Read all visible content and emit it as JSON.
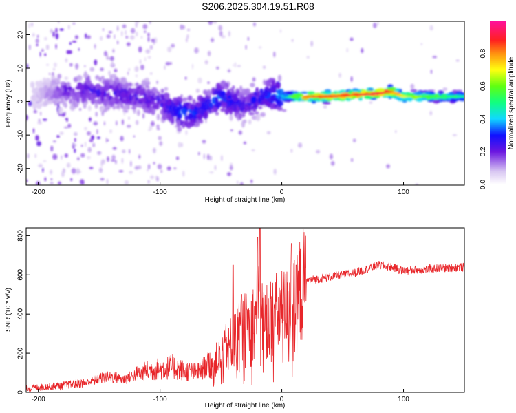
{
  "title": "S206.2025.304.19.51.R08",
  "chart_data": [
    {
      "type": "heatmap",
      "xlabel": "Height of straight line (km)",
      "ylabel": "Frequency (Hz)",
      "xlim": [
        -210,
        150
      ],
      "ylim": [
        -25,
        24
      ],
      "xticks": [
        -200,
        -100,
        0,
        100
      ],
      "yticks": [
        20,
        10,
        0,
        -10,
        -20
      ],
      "colorbar": {
        "label": "Normalized spectral amplitude",
        "range": [
          0,
          1
        ],
        "ticks": [
          "0.0",
          "0.2",
          "0.4",
          "0.6",
          "0.8"
        ],
        "tick_values": [
          0,
          0.2,
          0.4,
          0.6,
          0.8
        ]
      },
      "ridge": {
        "x": [
          -200,
          -180,
          -160,
          -140,
          -120,
          -100,
          -90,
          -80,
          -70,
          -60,
          -50,
          -40,
          -30,
          -20,
          -10,
          0,
          20,
          40,
          60,
          80,
          90,
          100,
          120,
          150
        ],
        "freq": [
          2.0,
          3.0,
          3.5,
          2.5,
          2.0,
          0.0,
          -2.5,
          -3.5,
          -3.0,
          -1.0,
          1.5,
          0.0,
          -1.5,
          1.0,
          2.0,
          1.5,
          1.5,
          1.5,
          2.0,
          2.5,
          3.0,
          1.5,
          1.5,
          1.5
        ],
        "amplitude": [
          0.1,
          0.2,
          0.25,
          0.25,
          0.25,
          0.25,
          0.3,
          0.35,
          0.3,
          0.3,
          0.35,
          0.3,
          0.25,
          0.3,
          0.35,
          0.4,
          0.85,
          0.9,
          0.9,
          0.95,
          0.85,
          0.7,
          0.6,
          0.5
        ]
      }
    },
    {
      "type": "line",
      "xlabel": "Height of straight line (km)",
      "ylabel": "SNR (10 * v/v)",
      "xlim": [
        -210,
        150
      ],
      "ylim": [
        0,
        840
      ],
      "xticks": [
        -200,
        -100,
        0,
        100
      ],
      "yticks": [
        0,
        200,
        400,
        600,
        800
      ],
      "color": "#e8262a",
      "series": [
        {
          "name": "SNR",
          "x": [
            -210,
            -200,
            -180,
            -160,
            -150,
            -140,
            -130,
            -120,
            -110,
            -100,
            -90,
            -80,
            -70,
            -60,
            -50,
            -45,
            -40,
            -35,
            -30,
            -25,
            -20,
            -18,
            -15,
            -10,
            -5,
            0,
            5,
            8,
            10,
            12,
            15,
            20,
            30,
            40,
            50,
            60,
            70,
            80,
            90,
            100,
            120,
            150
          ],
          "y": [
            20,
            25,
            35,
            50,
            70,
            80,
            65,
            90,
            110,
            120,
            130,
            110,
            100,
            140,
            180,
            240,
            250,
            300,
            330,
            350,
            400,
            480,
            370,
            380,
            400,
            410,
            420,
            450,
            440,
            480,
            520,
            570,
            580,
            590,
            600,
            610,
            630,
            650,
            640,
            620,
            630,
            640
          ]
        }
      ],
      "spikes": [
        {
          "x": -40,
          "y": 650
        },
        {
          "x": -33,
          "y": 500
        },
        {
          "x": -20,
          "y": 790
        },
        {
          "x": -18,
          "y": 840
        },
        {
          "x": 8,
          "y": 760
        },
        {
          "x": 12,
          "y": 650
        }
      ]
    }
  ]
}
